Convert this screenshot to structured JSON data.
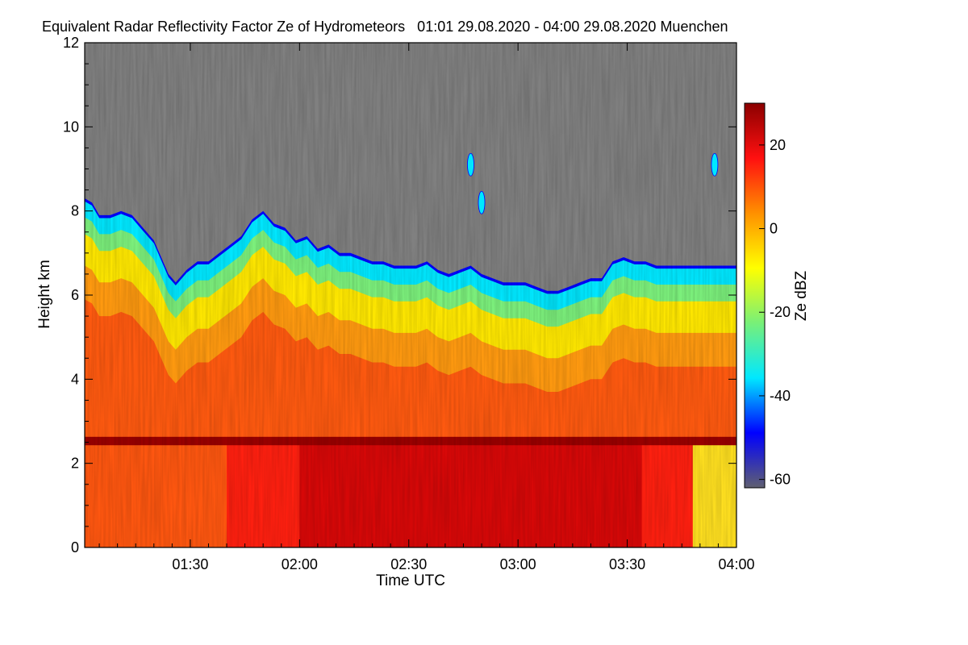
{
  "chart_data": {
    "type": "heatmap",
    "title": "Equivalent Radar Reflectivity Factor Ze of Hydrometeors   01:01 29.08.2020 - 04:00 29.08.2020 Muenchen",
    "xlabel": "Time UTC",
    "ylabel": "Height km",
    "colorbar_label": "Ze dBZ",
    "x_range_minutes": [
      61,
      240
    ],
    "x_ticks": [
      {
        "label": "01:30",
        "value": 90
      },
      {
        "label": "02:00",
        "value": 120
      },
      {
        "label": "02:30",
        "value": 150
      },
      {
        "label": "03:00",
        "value": 180
      },
      {
        "label": "03:30",
        "value": 210
      },
      {
        "label": "04:00",
        "value": 240
      }
    ],
    "ylim": [
      0,
      12
    ],
    "y_ticks": [
      {
        "label": "0",
        "value": 0
      },
      {
        "label": "2",
        "value": 2
      },
      {
        "label": "4",
        "value": 4
      },
      {
        "label": "6",
        "value": 6
      },
      {
        "label": "8",
        "value": 8
      },
      {
        "label": "10",
        "value": 10
      },
      {
        "label": "12",
        "value": 12
      }
    ],
    "color_range": [
      -62,
      30
    ],
    "colorbar_ticks": [
      {
        "label": "20",
        "value": 20
      },
      {
        "label": "0",
        "value": 0
      },
      {
        "label": "-20",
        "value": -20
      },
      {
        "label": "-40",
        "value": -40
      },
      {
        "label": "-60",
        "value": -60
      }
    ],
    "no_signal_color": "#808080",
    "colormap": [
      "#606070",
      "#0000ff",
      "#00e8ff",
      "#78f078",
      "#ffff00",
      "#ff9000",
      "#ff1010",
      "#8b0000"
    ],
    "cloud_top_km": [
      [
        61,
        8.3
      ],
      [
        63,
        8.2
      ],
      [
        65,
        7.9
      ],
      [
        68,
        7.9
      ],
      [
        71,
        8.0
      ],
      [
        74,
        7.9
      ],
      [
        77,
        7.6
      ],
      [
        80,
        7.3
      ],
      [
        82,
        6.9
      ],
      [
        84,
        6.5
      ],
      [
        86,
        6.3
      ],
      [
        89,
        6.6
      ],
      [
        92,
        6.8
      ],
      [
        95,
        6.8
      ],
      [
        98,
        7.0
      ],
      [
        101,
        7.2
      ],
      [
        104,
        7.4
      ],
      [
        107,
        7.8
      ],
      [
        110,
        8.0
      ],
      [
        113,
        7.7
      ],
      [
        116,
        7.6
      ],
      [
        119,
        7.3
      ],
      [
        122,
        7.4
      ],
      [
        125,
        7.1
      ],
      [
        128,
        7.2
      ],
      [
        131,
        7.0
      ],
      [
        134,
        7.0
      ],
      [
        137,
        6.9
      ],
      [
        140,
        6.8
      ],
      [
        143,
        6.8
      ],
      [
        146,
        6.7
      ],
      [
        149,
        6.7
      ],
      [
        152,
        6.7
      ],
      [
        155,
        6.8
      ],
      [
        158,
        6.6
      ],
      [
        161,
        6.5
      ],
      [
        164,
        6.6
      ],
      [
        167,
        6.7
      ],
      [
        170,
        6.5
      ],
      [
        173,
        6.4
      ],
      [
        176,
        6.3
      ],
      [
        179,
        6.3
      ],
      [
        182,
        6.3
      ],
      [
        185,
        6.2
      ],
      [
        188,
        6.1
      ],
      [
        191,
        6.1
      ],
      [
        194,
        6.2
      ],
      [
        197,
        6.3
      ],
      [
        200,
        6.4
      ],
      [
        203,
        6.4
      ],
      [
        206,
        6.8
      ],
      [
        209,
        6.9
      ],
      [
        212,
        6.8
      ],
      [
        215,
        6.8
      ],
      [
        218,
        6.7
      ],
      [
        221,
        6.7
      ],
      [
        224,
        6.7
      ],
      [
        227,
        6.7
      ],
      [
        230,
        6.7
      ],
      [
        233,
        6.7
      ],
      [
        236,
        6.7
      ],
      [
        240,
        6.7
      ]
    ],
    "melting_layer_km": 2.55,
    "isolated_echoes": [
      {
        "time": 167,
        "height_km": 9.1
      },
      {
        "time": 170,
        "height_km": 8.2
      },
      {
        "time": 234,
        "height_km": 9.1
      }
    ]
  }
}
